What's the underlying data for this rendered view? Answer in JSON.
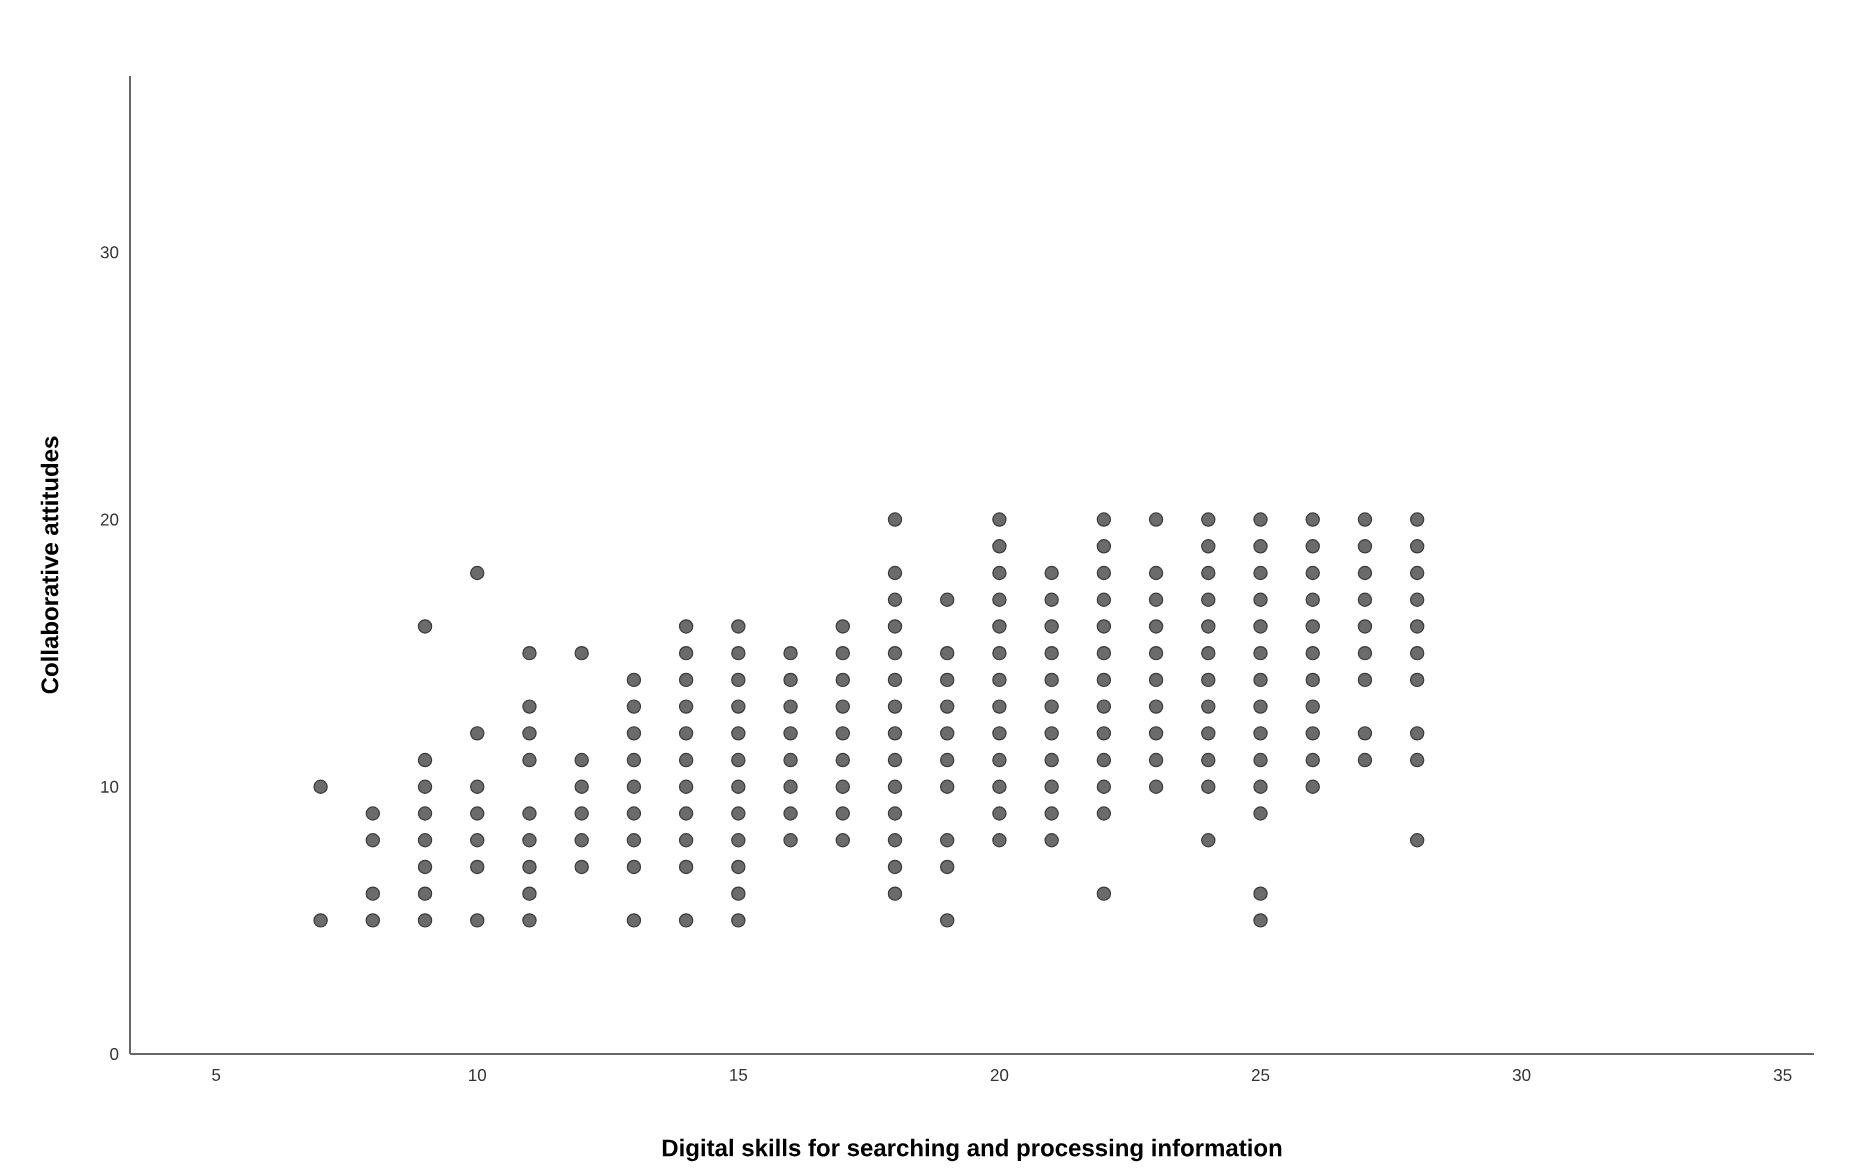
{
  "chart_data": {
    "type": "scatter",
    "xlabel": "Digital skills for searching and processing information",
    "ylabel": "Collaborative attitudes",
    "xlim": [
      3.35,
      35.6
    ],
    "ylim": [
      0,
      36.6
    ],
    "xticks": [
      5,
      10,
      15,
      20,
      25,
      30,
      35
    ],
    "yticks": [
      0,
      10,
      20,
      30
    ],
    "marker": "circle",
    "grid": false,
    "series": [
      {
        "color": "#6b6b6b",
        "x": [
          7,
          7,
          8,
          8,
          8,
          8,
          9,
          9,
          9,
          9,
          9,
          9,
          9,
          9,
          10,
          10,
          10,
          10,
          10,
          10,
          10,
          11,
          11,
          11,
          11,
          11,
          11,
          11,
          11,
          11,
          12,
          12,
          12,
          12,
          12,
          12,
          13,
          13,
          13,
          13,
          13,
          13,
          13,
          13,
          13,
          14,
          14,
          14,
          14,
          14,
          14,
          14,
          14,
          14,
          14,
          14,
          15,
          15,
          15,
          15,
          15,
          15,
          15,
          15,
          15,
          15,
          15,
          15,
          16,
          16,
          16,
          16,
          16,
          16,
          16,
          16,
          17,
          17,
          17,
          17,
          17,
          17,
          17,
          17,
          17,
          18,
          18,
          18,
          18,
          18,
          18,
          18,
          18,
          18,
          18,
          18,
          18,
          18,
          18,
          19,
          19,
          19,
          19,
          19,
          19,
          19,
          19,
          19,
          19,
          20,
          20,
          20,
          20,
          20,
          20,
          20,
          20,
          20,
          20,
          20,
          20,
          20,
          21,
          21,
          21,
          21,
          21,
          21,
          21,
          21,
          21,
          21,
          21,
          22,
          22,
          22,
          22,
          22,
          22,
          22,
          22,
          22,
          22,
          22,
          22,
          22,
          23,
          23,
          23,
          23,
          23,
          23,
          23,
          23,
          23,
          23,
          24,
          24,
          24,
          24,
          24,
          24,
          24,
          24,
          24,
          24,
          24,
          24,
          25,
          25,
          25,
          25,
          25,
          25,
          25,
          25,
          25,
          25,
          25,
          25,
          25,
          25,
          26,
          26,
          26,
          26,
          26,
          26,
          26,
          26,
          26,
          26,
          26,
          27,
          27,
          27,
          27,
          27,
          27,
          27,
          27,
          27,
          28,
          28,
          28,
          28,
          28,
          28,
          28,
          28,
          28,
          28
        ],
        "values": [
          5,
          10,
          5,
          6,
          8,
          9,
          5,
          6,
          7,
          8,
          9,
          10,
          11,
          16,
          5,
          7,
          8,
          9,
          10,
          12,
          18,
          5,
          6,
          7,
          8,
          9,
          11,
          12,
          13,
          15,
          7,
          8,
          9,
          10,
          11,
          15,
          5,
          7,
          8,
          9,
          10,
          11,
          12,
          13,
          14,
          5,
          7,
          8,
          9,
          10,
          11,
          12,
          13,
          14,
          15,
          16,
          5,
          6,
          7,
          8,
          9,
          10,
          11,
          12,
          13,
          14,
          15,
          16,
          8,
          9,
          10,
          11,
          12,
          13,
          14,
          15,
          8,
          9,
          10,
          11,
          12,
          13,
          14,
          15,
          16,
          6,
          7,
          8,
          9,
          10,
          11,
          12,
          13,
          14,
          15,
          16,
          17,
          18,
          20,
          5,
          7,
          8,
          10,
          11,
          12,
          13,
          14,
          15,
          17,
          8,
          9,
          10,
          11,
          12,
          13,
          14,
          15,
          16,
          17,
          18,
          19,
          20,
          8,
          9,
          10,
          11,
          12,
          13,
          14,
          15,
          16,
          17,
          18,
          6,
          9,
          10,
          11,
          12,
          13,
          14,
          15,
          16,
          17,
          18,
          19,
          20,
          10,
          11,
          12,
          13,
          14,
          15,
          16,
          17,
          18,
          20,
          8,
          10,
          11,
          12,
          13,
          14,
          15,
          16,
          17,
          18,
          19,
          20,
          5,
          6,
          9,
          10,
          11,
          12,
          13,
          14,
          15,
          16,
          17,
          18,
          19,
          20,
          10,
          11,
          12,
          13,
          14,
          15,
          16,
          17,
          18,
          19,
          20,
          11,
          12,
          14,
          15,
          16,
          17,
          18,
          19,
          20,
          8,
          11,
          12,
          14,
          15,
          16,
          17,
          18,
          19,
          20
        ]
      }
    ]
  }
}
